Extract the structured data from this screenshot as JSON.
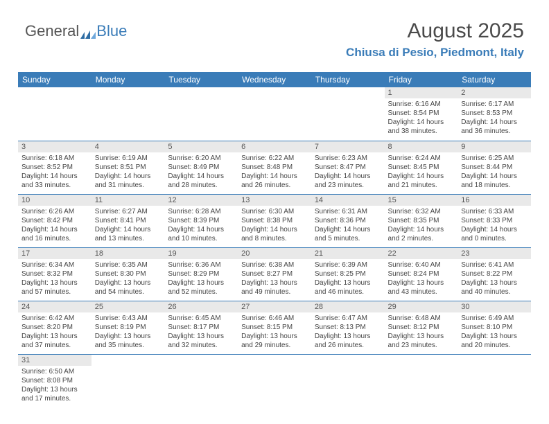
{
  "logo": {
    "part1": "General",
    "part2": "Blue"
  },
  "title": "August 2025",
  "subtitle": "Chiusa di Pesio, Piedmont, Italy",
  "weekdays": [
    "Sunday",
    "Monday",
    "Tuesday",
    "Wednesday",
    "Thursday",
    "Friday",
    "Saturday"
  ],
  "colors": {
    "accent": "#3a7cb8",
    "header_text": "#ffffff",
    "daynum_bg": "#e9e9e9",
    "text": "#444444"
  },
  "font_sizes": {
    "title": 30,
    "subtitle": 17,
    "weekday": 12,
    "daynum": 11,
    "body": 10
  },
  "weeks": [
    [
      null,
      null,
      null,
      null,
      null,
      {
        "n": "1",
        "sr": "Sunrise: 6:16 AM",
        "ss": "Sunset: 8:54 PM",
        "d1": "Daylight: 14 hours",
        "d2": "and 38 minutes."
      },
      {
        "n": "2",
        "sr": "Sunrise: 6:17 AM",
        "ss": "Sunset: 8:53 PM",
        "d1": "Daylight: 14 hours",
        "d2": "and 36 minutes."
      }
    ],
    [
      {
        "n": "3",
        "sr": "Sunrise: 6:18 AM",
        "ss": "Sunset: 8:52 PM",
        "d1": "Daylight: 14 hours",
        "d2": "and 33 minutes."
      },
      {
        "n": "4",
        "sr": "Sunrise: 6:19 AM",
        "ss": "Sunset: 8:51 PM",
        "d1": "Daylight: 14 hours",
        "d2": "and 31 minutes."
      },
      {
        "n": "5",
        "sr": "Sunrise: 6:20 AM",
        "ss": "Sunset: 8:49 PM",
        "d1": "Daylight: 14 hours",
        "d2": "and 28 minutes."
      },
      {
        "n": "6",
        "sr": "Sunrise: 6:22 AM",
        "ss": "Sunset: 8:48 PM",
        "d1": "Daylight: 14 hours",
        "d2": "and 26 minutes."
      },
      {
        "n": "7",
        "sr": "Sunrise: 6:23 AM",
        "ss": "Sunset: 8:47 PM",
        "d1": "Daylight: 14 hours",
        "d2": "and 23 minutes."
      },
      {
        "n": "8",
        "sr": "Sunrise: 6:24 AM",
        "ss": "Sunset: 8:45 PM",
        "d1": "Daylight: 14 hours",
        "d2": "and 21 minutes."
      },
      {
        "n": "9",
        "sr": "Sunrise: 6:25 AM",
        "ss": "Sunset: 8:44 PM",
        "d1": "Daylight: 14 hours",
        "d2": "and 18 minutes."
      }
    ],
    [
      {
        "n": "10",
        "sr": "Sunrise: 6:26 AM",
        "ss": "Sunset: 8:42 PM",
        "d1": "Daylight: 14 hours",
        "d2": "and 16 minutes."
      },
      {
        "n": "11",
        "sr": "Sunrise: 6:27 AM",
        "ss": "Sunset: 8:41 PM",
        "d1": "Daylight: 14 hours",
        "d2": "and 13 minutes."
      },
      {
        "n": "12",
        "sr": "Sunrise: 6:28 AM",
        "ss": "Sunset: 8:39 PM",
        "d1": "Daylight: 14 hours",
        "d2": "and 10 minutes."
      },
      {
        "n": "13",
        "sr": "Sunrise: 6:30 AM",
        "ss": "Sunset: 8:38 PM",
        "d1": "Daylight: 14 hours",
        "d2": "and 8 minutes."
      },
      {
        "n": "14",
        "sr": "Sunrise: 6:31 AM",
        "ss": "Sunset: 8:36 PM",
        "d1": "Daylight: 14 hours",
        "d2": "and 5 minutes."
      },
      {
        "n": "15",
        "sr": "Sunrise: 6:32 AM",
        "ss": "Sunset: 8:35 PM",
        "d1": "Daylight: 14 hours",
        "d2": "and 2 minutes."
      },
      {
        "n": "16",
        "sr": "Sunrise: 6:33 AM",
        "ss": "Sunset: 8:33 PM",
        "d1": "Daylight: 14 hours",
        "d2": "and 0 minutes."
      }
    ],
    [
      {
        "n": "17",
        "sr": "Sunrise: 6:34 AM",
        "ss": "Sunset: 8:32 PM",
        "d1": "Daylight: 13 hours",
        "d2": "and 57 minutes."
      },
      {
        "n": "18",
        "sr": "Sunrise: 6:35 AM",
        "ss": "Sunset: 8:30 PM",
        "d1": "Daylight: 13 hours",
        "d2": "and 54 minutes."
      },
      {
        "n": "19",
        "sr": "Sunrise: 6:36 AM",
        "ss": "Sunset: 8:29 PM",
        "d1": "Daylight: 13 hours",
        "d2": "and 52 minutes."
      },
      {
        "n": "20",
        "sr": "Sunrise: 6:38 AM",
        "ss": "Sunset: 8:27 PM",
        "d1": "Daylight: 13 hours",
        "d2": "and 49 minutes."
      },
      {
        "n": "21",
        "sr": "Sunrise: 6:39 AM",
        "ss": "Sunset: 8:25 PM",
        "d1": "Daylight: 13 hours",
        "d2": "and 46 minutes."
      },
      {
        "n": "22",
        "sr": "Sunrise: 6:40 AM",
        "ss": "Sunset: 8:24 PM",
        "d1": "Daylight: 13 hours",
        "d2": "and 43 minutes."
      },
      {
        "n": "23",
        "sr": "Sunrise: 6:41 AM",
        "ss": "Sunset: 8:22 PM",
        "d1": "Daylight: 13 hours",
        "d2": "and 40 minutes."
      }
    ],
    [
      {
        "n": "24",
        "sr": "Sunrise: 6:42 AM",
        "ss": "Sunset: 8:20 PM",
        "d1": "Daylight: 13 hours",
        "d2": "and 37 minutes."
      },
      {
        "n": "25",
        "sr": "Sunrise: 6:43 AM",
        "ss": "Sunset: 8:19 PM",
        "d1": "Daylight: 13 hours",
        "d2": "and 35 minutes."
      },
      {
        "n": "26",
        "sr": "Sunrise: 6:45 AM",
        "ss": "Sunset: 8:17 PM",
        "d1": "Daylight: 13 hours",
        "d2": "and 32 minutes."
      },
      {
        "n": "27",
        "sr": "Sunrise: 6:46 AM",
        "ss": "Sunset: 8:15 PM",
        "d1": "Daylight: 13 hours",
        "d2": "and 29 minutes."
      },
      {
        "n": "28",
        "sr": "Sunrise: 6:47 AM",
        "ss": "Sunset: 8:13 PM",
        "d1": "Daylight: 13 hours",
        "d2": "and 26 minutes."
      },
      {
        "n": "29",
        "sr": "Sunrise: 6:48 AM",
        "ss": "Sunset: 8:12 PM",
        "d1": "Daylight: 13 hours",
        "d2": "and 23 minutes."
      },
      {
        "n": "30",
        "sr": "Sunrise: 6:49 AM",
        "ss": "Sunset: 8:10 PM",
        "d1": "Daylight: 13 hours",
        "d2": "and 20 minutes."
      }
    ],
    [
      {
        "n": "31",
        "sr": "Sunrise: 6:50 AM",
        "ss": "Sunset: 8:08 PM",
        "d1": "Daylight: 13 hours",
        "d2": "and 17 minutes."
      },
      null,
      null,
      null,
      null,
      null,
      null
    ]
  ]
}
